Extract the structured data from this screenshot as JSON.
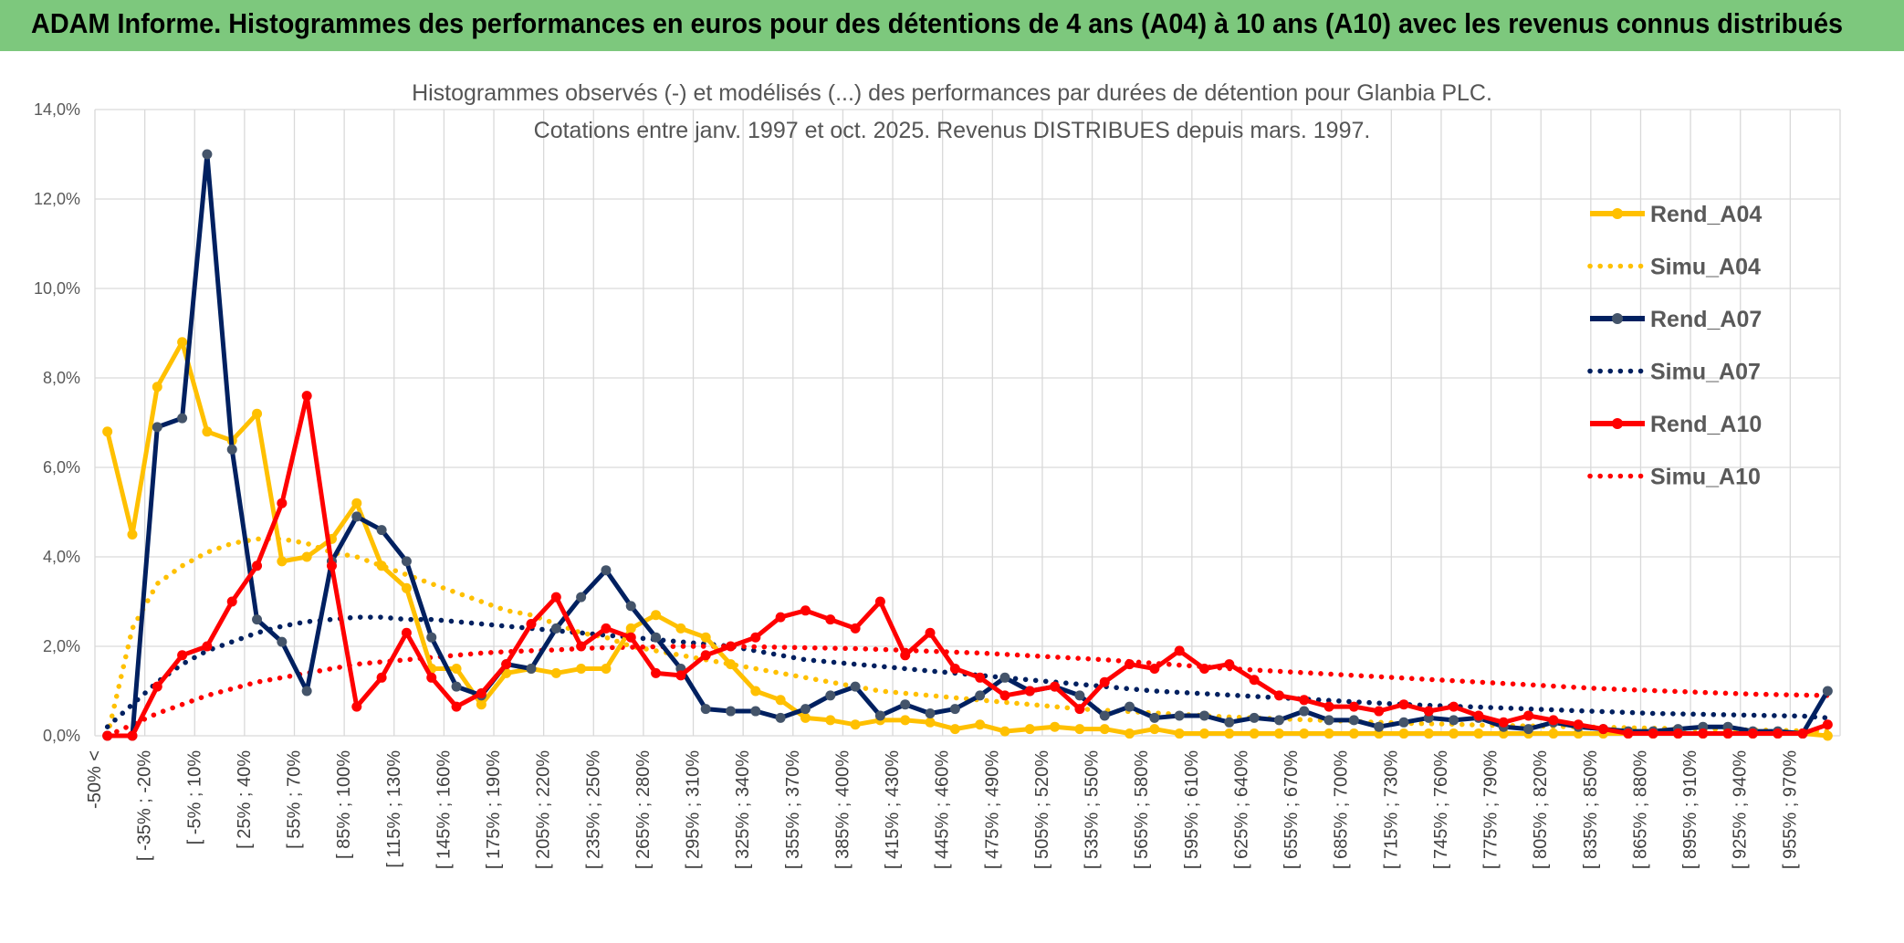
{
  "banner": {
    "title": "ADAM Informe. Histogrammes des performances en euros pour des détentions de 4 ans (A04) à 10 ans (A10) avec les revenus connus distribués"
  },
  "colors": {
    "banner_bg": "#7dc87d",
    "A04": "#ffc000",
    "A07": "#002060",
    "A10": "#ff0000",
    "grid": "#d9d9d9"
  },
  "chart_data": {
    "type": "line",
    "title": "Histogrammes observés (-) et modélisés (...) des performances par durées de détention pour Glanbia PLC.",
    "subtitle": "Cotations entre janv. 1997 et oct. 2025. Revenus DISTRIBUES depuis mars. 1997.",
    "ylim": [
      0,
      14
    ],
    "y_ticks": [
      "0,0%",
      "2,0%",
      "4,0%",
      "6,0%",
      "8,0%",
      "10,0%",
      "12,0%",
      "14,0%"
    ],
    "x_tick_labels": [
      "-50% <",
      "[ -35% ; -20%",
      "[ -5% ; 10%",
      "[ 25% ; 40%",
      "[ 55% ; 70%",
      "[ 85% ; 100%",
      "[ 115% ; 130%",
      "[ 145% ; 160%",
      "[ 175% ; 190%",
      "[ 205% ; 220%",
      "[ 235% ; 250%",
      "[ 265% ; 280%",
      "[ 295% ; 310%",
      "[ 325% ; 340%",
      "[ 355% ; 370%",
      "[ 385% ; 400%",
      "[ 415% ; 430%",
      "[ 445% ; 460%",
      "[ 475% ; 490%",
      "[ 505% ; 520%",
      "[ 535% ; 550%",
      "[ 565% ; 580%",
      "[ 595% ; 610%",
      "[ 625% ; 640%",
      "[ 655% ; 670%",
      "[ 685% ; 700%",
      "[ 715% ; 730%",
      "[ 745% ; 760%",
      "[ 775% ; 790%",
      "[ 805% ; 820%",
      "[ 835% ; 850%",
      "[ 865% ; 880%",
      "[ 895% ; 910%",
      "[ 925% ; 940%",
      "[ 955% ; 970%"
    ],
    "n_points": 70,
    "grid": true,
    "legend_position": "right",
    "series": [
      {
        "name": "Rend_A04",
        "style": "solid",
        "color": "#ffc000",
        "values": [
          6.8,
          4.5,
          7.8,
          8.8,
          6.8,
          6.6,
          7.2,
          3.9,
          4.0,
          4.4,
          5.2,
          3.8,
          3.3,
          1.5,
          1.5,
          0.7,
          1.4,
          1.5,
          1.4,
          1.5,
          1.5,
          2.4,
          2.7,
          2.4,
          2.2,
          1.6,
          1.0,
          0.8,
          0.4,
          0.35,
          0.25,
          0.35,
          0.35,
          0.3,
          0.15,
          0.25,
          0.1,
          0.15,
          0.2,
          0.15,
          0.15,
          0.05,
          0.15,
          0.05,
          0.05,
          0.05,
          0.05,
          0.05,
          0.05,
          0.05,
          0.05,
          0.05,
          0.05,
          0.05,
          0.05,
          0.05,
          0.05,
          0.05,
          0.05,
          0.05,
          0.05,
          0.05,
          0.05,
          0.05,
          0.05,
          0.05,
          0.05,
          0.05,
          0.05,
          0.0
        ]
      },
      {
        "name": "Simu_A04",
        "style": "dotted",
        "color": "#ffc000",
        "values": [
          0.0,
          2.4,
          3.4,
          3.8,
          4.1,
          4.3,
          4.4,
          4.4,
          4.3,
          4.1,
          4.0,
          3.8,
          3.6,
          3.4,
          3.2,
          3.0,
          2.8,
          2.7,
          2.5,
          2.3,
          2.2,
          2.0,
          1.9,
          1.8,
          1.7,
          1.6,
          1.5,
          1.4,
          1.3,
          1.2,
          1.1,
          1.0,
          0.95,
          0.9,
          0.85,
          0.8,
          0.75,
          0.7,
          0.65,
          0.6,
          0.57,
          0.54,
          0.51,
          0.48,
          0.45,
          0.42,
          0.4,
          0.38,
          0.36,
          0.34,
          0.32,
          0.3,
          0.28,
          0.27,
          0.26,
          0.24,
          0.23,
          0.22,
          0.21,
          0.2,
          0.19,
          0.18,
          0.17,
          0.16,
          0.15,
          0.14,
          0.13,
          0.12,
          0.11,
          0.1
        ]
      },
      {
        "name": "Rend_A07",
        "style": "solid",
        "color": "#002060",
        "values": [
          0.0,
          0.0,
          6.9,
          7.1,
          13.0,
          6.4,
          2.6,
          2.1,
          1.0,
          3.9,
          4.9,
          4.6,
          3.9,
          2.2,
          1.1,
          0.9,
          1.6,
          1.5,
          2.4,
          3.1,
          3.7,
          2.9,
          2.2,
          1.5,
          0.6,
          0.55,
          0.55,
          0.4,
          0.6,
          0.9,
          1.1,
          0.45,
          0.7,
          0.5,
          0.6,
          0.9,
          1.3,
          1.0,
          1.1,
          0.9,
          0.45,
          0.65,
          0.4,
          0.45,
          0.45,
          0.3,
          0.4,
          0.35,
          0.55,
          0.35,
          0.35,
          0.2,
          0.3,
          0.4,
          0.35,
          0.4,
          0.2,
          0.15,
          0.3,
          0.2,
          0.15,
          0.1,
          0.1,
          0.15,
          0.2,
          0.2,
          0.1,
          0.1,
          0.05,
          1.0
        ]
      },
      {
        "name": "Simu_A07",
        "style": "dotted",
        "color": "#002060",
        "values": [
          0.2,
          0.7,
          1.2,
          1.6,
          1.9,
          2.1,
          2.3,
          2.45,
          2.55,
          2.6,
          2.65,
          2.65,
          2.6,
          2.6,
          2.55,
          2.5,
          2.45,
          2.4,
          2.35,
          2.3,
          2.25,
          2.2,
          2.15,
          2.1,
          2.05,
          2.0,
          1.9,
          1.8,
          1.7,
          1.65,
          1.6,
          1.55,
          1.5,
          1.45,
          1.4,
          1.35,
          1.3,
          1.25,
          1.2,
          1.15,
          1.1,
          1.05,
          1.0,
          0.97,
          0.94,
          0.91,
          0.88,
          0.85,
          0.82,
          0.79,
          0.76,
          0.73,
          0.7,
          0.68,
          0.66,
          0.64,
          0.62,
          0.6,
          0.58,
          0.56,
          0.54,
          0.52,
          0.5,
          0.49,
          0.48,
          0.47,
          0.46,
          0.45,
          0.44,
          0.4
        ]
      },
      {
        "name": "Rend_A10",
        "style": "solid",
        "color": "#ff0000",
        "values": [
          0.0,
          0.0,
          1.1,
          1.8,
          2.0,
          3.0,
          3.8,
          5.2,
          7.6,
          3.8,
          0.65,
          1.3,
          2.3,
          1.3,
          0.65,
          0.95,
          1.6,
          2.5,
          3.1,
          2.0,
          2.4,
          2.2,
          1.4,
          1.35,
          1.8,
          2.0,
          2.2,
          2.65,
          2.8,
          2.6,
          2.4,
          3.0,
          1.8,
          2.3,
          1.5,
          1.3,
          0.9,
          1.0,
          1.1,
          0.6,
          1.2,
          1.6,
          1.5,
          1.9,
          1.5,
          1.6,
          1.25,
          0.9,
          0.8,
          0.65,
          0.65,
          0.55,
          0.7,
          0.55,
          0.65,
          0.45,
          0.3,
          0.45,
          0.35,
          0.25,
          0.15,
          0.05,
          0.05,
          0.05,
          0.05,
          0.05,
          0.05,
          0.05,
          0.05,
          0.25
        ]
      },
      {
        "name": "Simu_A10",
        "style": "dotted",
        "color": "#ff0000",
        "values": [
          0.0,
          0.25,
          0.5,
          0.7,
          0.9,
          1.05,
          1.2,
          1.3,
          1.4,
          1.5,
          1.6,
          1.65,
          1.7,
          1.75,
          1.8,
          1.85,
          1.88,
          1.9,
          1.92,
          1.95,
          1.97,
          1.98,
          1.99,
          2.0,
          2.0,
          2.0,
          1.99,
          1.98,
          1.97,
          1.96,
          1.95,
          1.93,
          1.91,
          1.89,
          1.87,
          1.85,
          1.82,
          1.79,
          1.76,
          1.73,
          1.7,
          1.66,
          1.62,
          1.58,
          1.54,
          1.5,
          1.47,
          1.44,
          1.41,
          1.38,
          1.35,
          1.32,
          1.29,
          1.26,
          1.23,
          1.2,
          1.17,
          1.14,
          1.11,
          1.08,
          1.05,
          1.03,
          1.01,
          0.99,
          0.97,
          0.95,
          0.93,
          0.92,
          0.91,
          0.9
        ]
      }
    ]
  }
}
